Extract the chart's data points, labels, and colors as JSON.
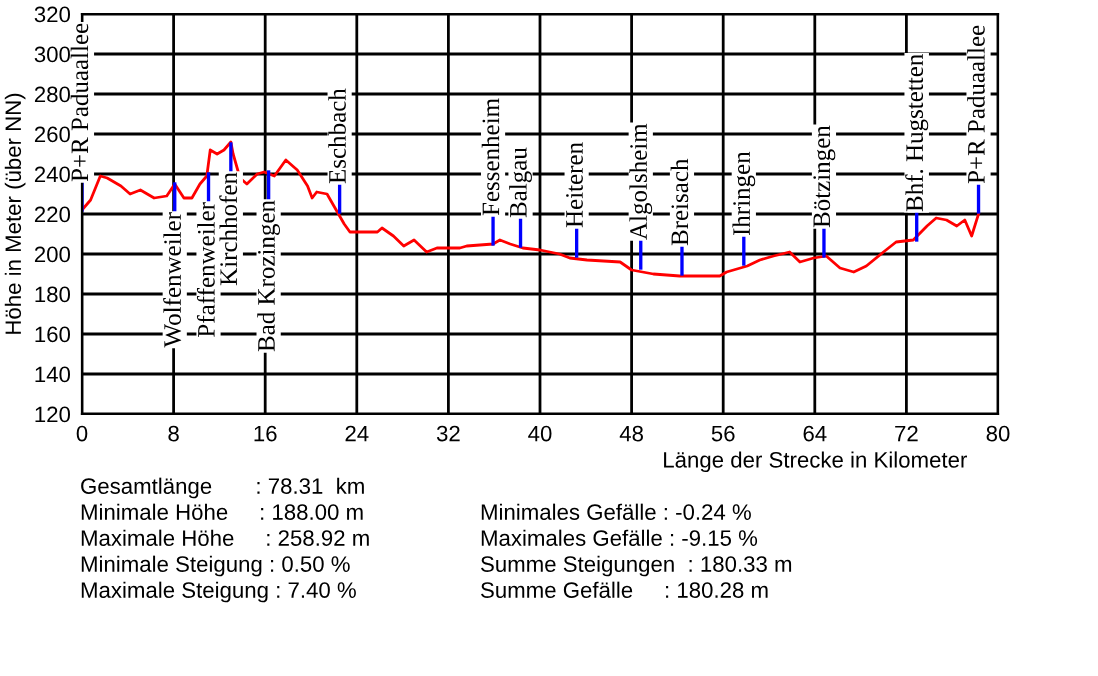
{
  "chart_data": {
    "type": "line",
    "xlabel": "Länge der Strecke in Kilometer",
    "ylabel": "Höhe in Meter (über NN)",
    "xlim": [
      0,
      80
    ],
    "xticks": [
      0,
      8,
      16,
      24,
      32,
      40,
      48,
      56,
      64,
      72,
      80
    ],
    "ylim": [
      120,
      320
    ],
    "yticks": [
      120,
      140,
      160,
      180,
      200,
      220,
      240,
      260,
      280,
      300,
      320
    ],
    "grid": true,
    "series": [
      {
        "color": "#ff0000",
        "x": [
          0,
          0.75,
          1.6,
          2.2,
          3.4,
          4.2,
          5.1,
          6.3,
          7.4,
          8.1,
          8.9,
          9.6,
          10.3,
          10.9,
          11.2,
          11.8,
          12.4,
          13.0,
          13.2,
          13.8,
          14.4,
          15.3,
          15.9,
          16.8,
          17.8,
          18.8,
          19.7,
          20.1,
          20.5,
          21.4,
          22.0,
          22.9,
          23.4,
          25.8,
          26.2,
          27.2,
          28.1,
          29.0,
          30.1,
          31.0,
          33.0,
          33.6,
          35.9,
          36.5,
          37.4,
          38.5,
          40.0,
          41.7,
          42.6,
          44.1,
          47.0,
          48.0,
          49.9,
          52.2,
          55.7,
          56.3,
          58.1,
          59.2,
          60.4,
          61.8,
          62.7,
          63.9,
          65.0,
          66.2,
          67.4,
          68.5,
          70.0,
          71.1,
          72.6,
          73.8,
          74.6,
          75.5,
          76.4,
          77.1,
          77.7,
          78.3
        ],
        "values": [
          222,
          227,
          239,
          238,
          234,
          230,
          232,
          228,
          229,
          235,
          228,
          228,
          235,
          239,
          252,
          250,
          252,
          256,
          250,
          238,
          235,
          240,
          241,
          239,
          247,
          242,
          234,
          228,
          231,
          230,
          224,
          215,
          211,
          211,
          213,
          209,
          204,
          207,
          201,
          203,
          203,
          204,
          205,
          207,
          205,
          203,
          202,
          200,
          198,
          197,
          196,
          192,
          190,
          189,
          189,
          191,
          194,
          197,
          199,
          201,
          196,
          198,
          199,
          193,
          191,
          194,
          201,
          206,
          207,
          214,
          218,
          217,
          214,
          217,
          209,
          220
        ]
      }
    ],
    "annotations": [
      {
        "text": "P+R Paduaallee",
        "x": 0,
        "y": 222
      },
      {
        "text": "Wolfenweiler",
        "x": 8.1,
        "y": 235
      },
      {
        "text": "Pfaffenweiler",
        "x": 11.05,
        "y": 240
      },
      {
        "text": "Kirchhofen",
        "x": 13.0,
        "y": 255
      },
      {
        "text": "Bad Krozingen",
        "x": 16.3,
        "y": 241
      },
      {
        "text": "Eschbach",
        "x": 22.5,
        "y": 221
      },
      {
        "text": "Fessenheim",
        "x": 35.9,
        "y": 205
      },
      {
        "text": "Balgau",
        "x": 38.3,
        "y": 204
      },
      {
        "text": "Heiteren",
        "x": 43.2,
        "y": 199
      },
      {
        "text": "Algolsheim",
        "x": 48.8,
        "y": 193
      },
      {
        "text": "Breisach",
        "x": 52.4,
        "y": 190
      },
      {
        "text": "Ihringen",
        "x": 57.8,
        "y": 195
      },
      {
        "text": "Bötzingen",
        "x": 64.8,
        "y": 199
      },
      {
        "text": "Bhf. Hugstetten",
        "x": 72.9,
        "y": 207
      },
      {
        "text": "P+R Paduaallee",
        "x": 78.3,
        "y": 221
      },
      "Gesamtlänge       : 78.31  km",
      "Minimale Höhe     : 188.00 m",
      "Maximale Höhe     : 258.92 m",
      "Minimale Steigung : 0.50 %",
      "Maximale Steigung : 7.40 %",
      "Minimales Gefälle : -0.24 %",
      "Maximales Gefälle : -9.15 %",
      "Summe Steigungen  : 180.33 m",
      "Summe Gefälle     : 180.28 m"
    ]
  }
}
